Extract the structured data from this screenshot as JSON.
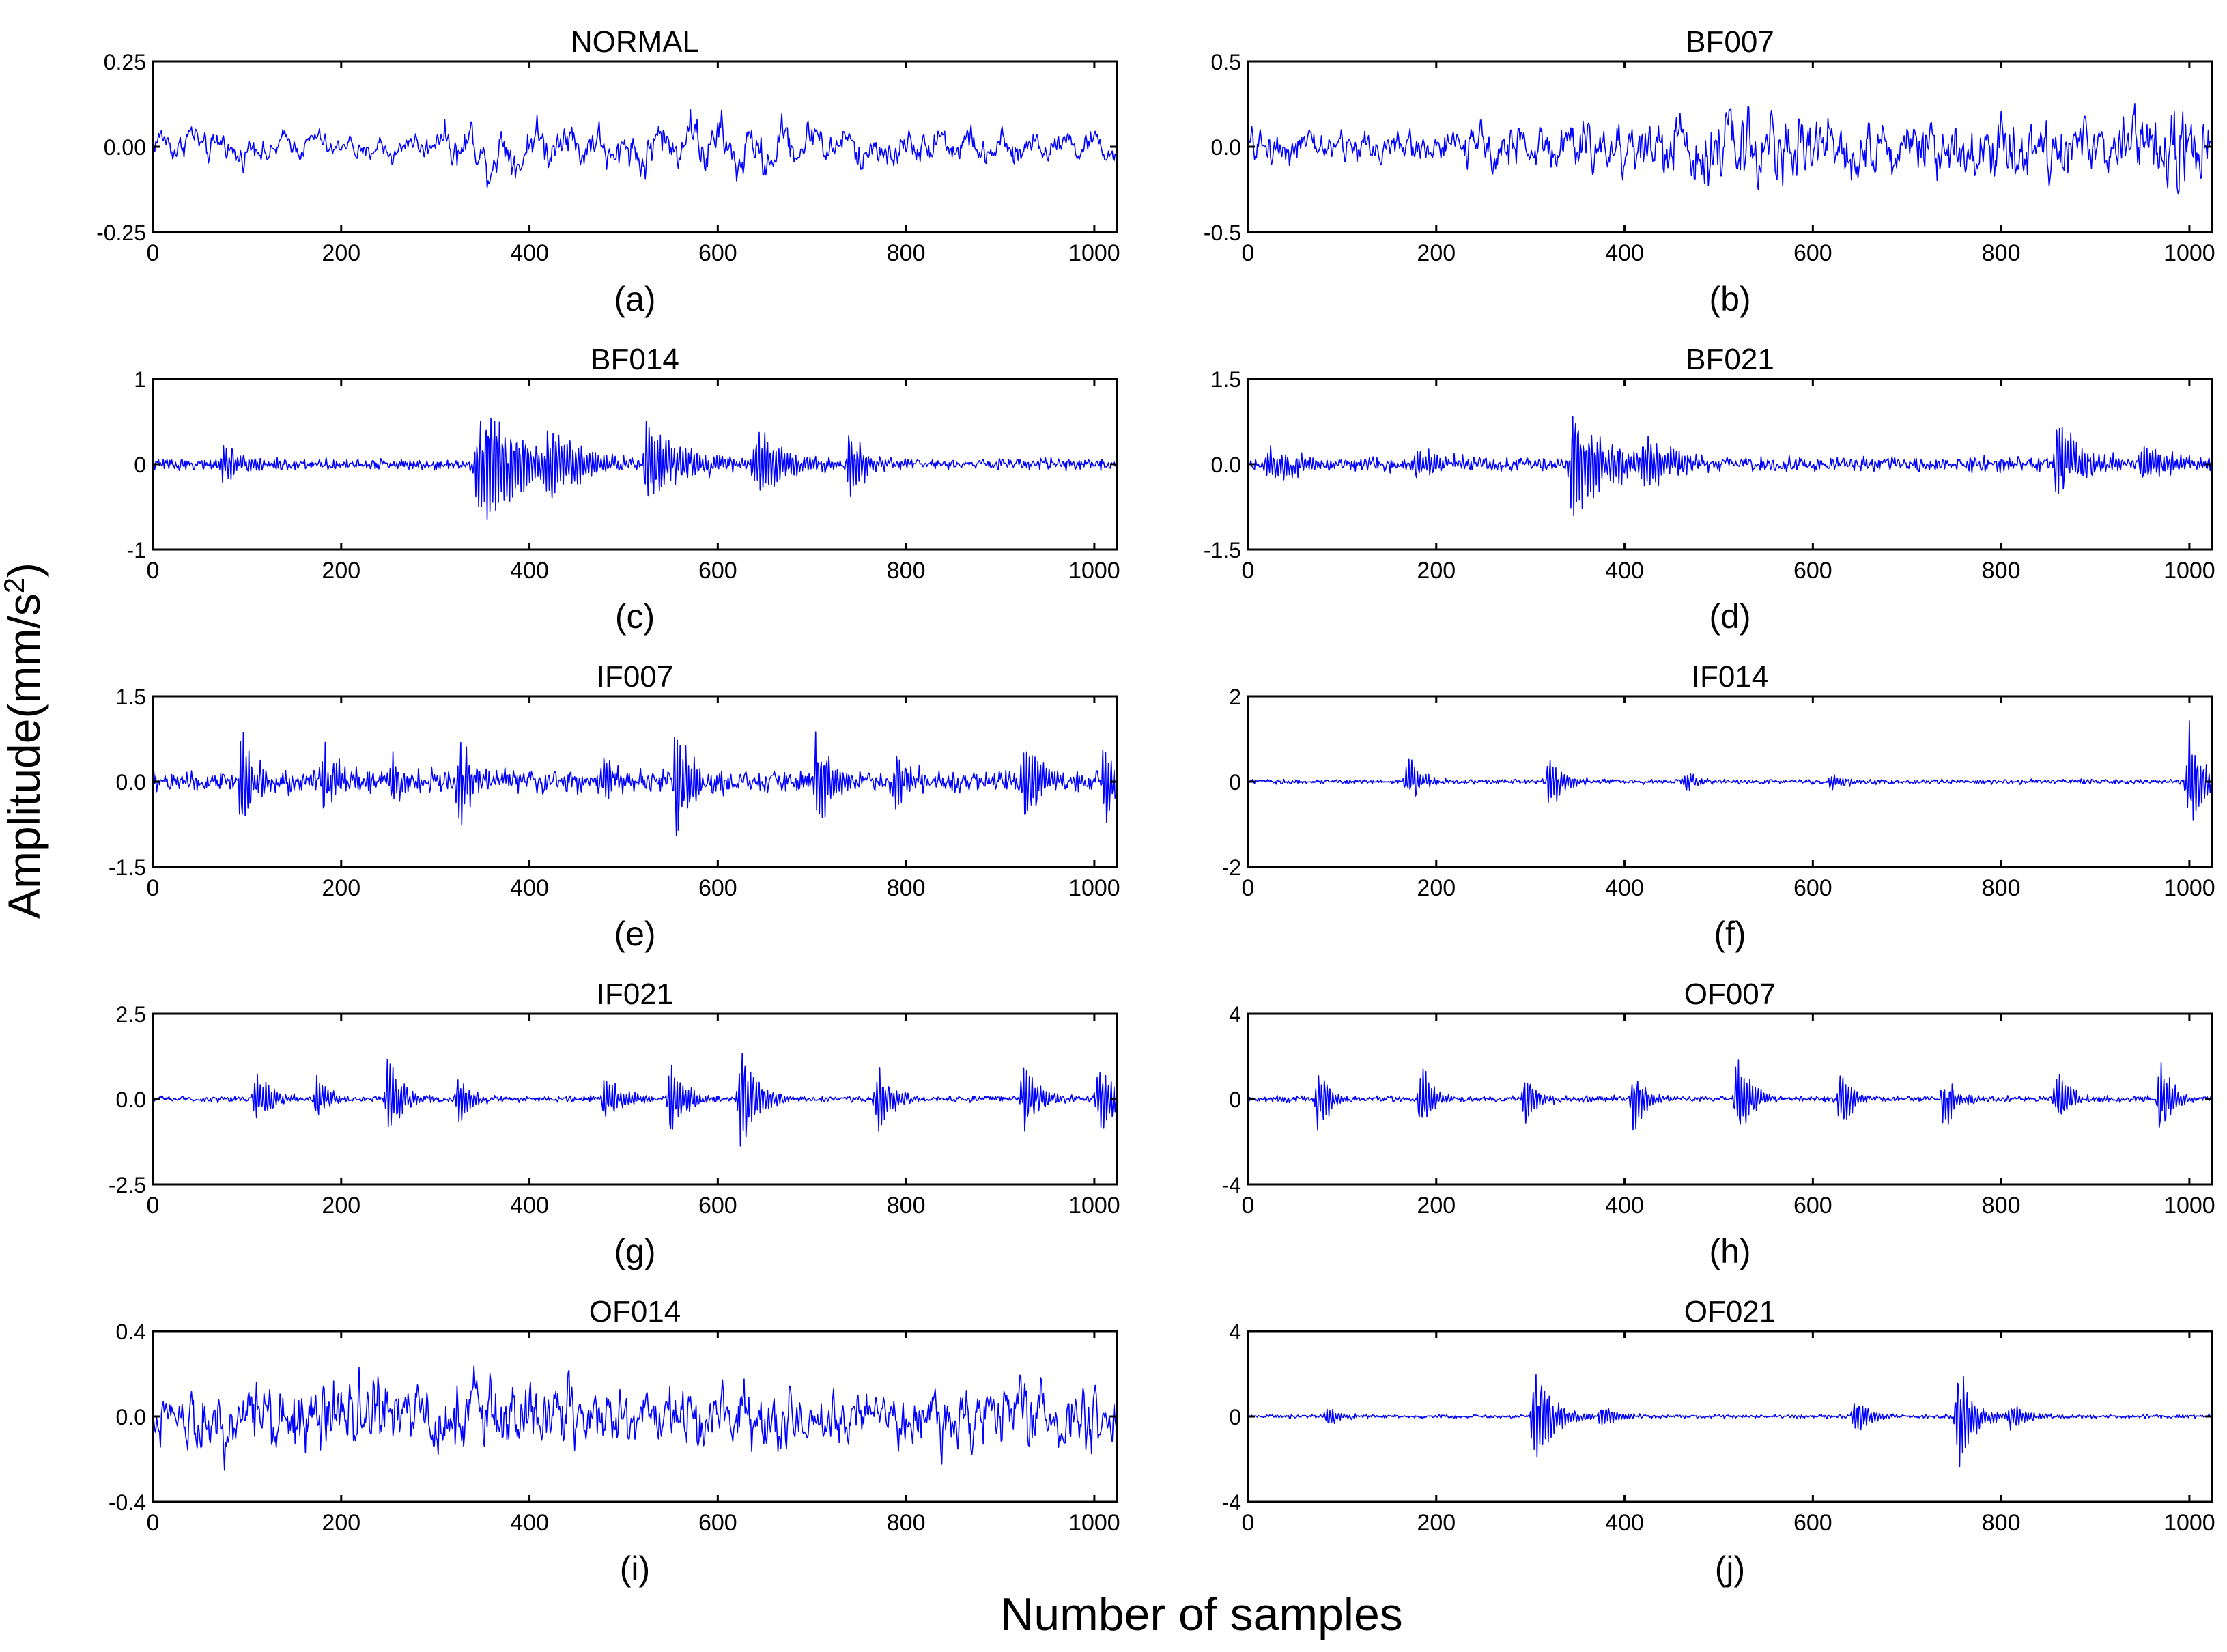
{
  "figure": {
    "ylabel": "Amplitude(mm/s",
    "ylabel_sup": "2",
    "ylabel_close": ")",
    "xlabel": "Number of samples",
    "line_color": "#0000ff"
  },
  "chart_data": [
    {
      "type": "line",
      "title": "NORMAL",
      "caption": "(a)",
      "xlabel": "Number of samples",
      "ylabel": "Amplitude(mm/s2)",
      "xlim": [
        0,
        1024
      ],
      "ylim": [
        -0.25,
        0.25
      ],
      "xticks": [
        0,
        200,
        400,
        600,
        800,
        1000
      ],
      "xtick_labels": [
        "0",
        "200",
        "400",
        "600",
        "800",
        "1000"
      ],
      "yticks": [
        -0.25,
        0,
        0.25
      ],
      "ytick_labels": [
        "-0.25",
        "0.00",
        "0.25"
      ],
      "n_samples": 1024,
      "noise_amp": 0.08,
      "envelope": [
        [
          0,
          0.09
        ],
        [
          60,
          0.1
        ],
        [
          140,
          0.07
        ],
        [
          280,
          0.08
        ],
        [
          350,
          0.15
        ],
        [
          460,
          0.12
        ],
        [
          600,
          0.16
        ],
        [
          700,
          0.12
        ],
        [
          860,
          0.1
        ],
        [
          1024,
          0.08
        ]
      ],
      "bursts": [],
      "series": [
        {
          "name": "NORMAL",
          "values": "1024-sample vibration record"
        }
      ]
    },
    {
      "type": "line",
      "title": "BF007",
      "caption": "(b)",
      "xlabel": "Number of samples",
      "ylabel": "Amplitude(mm/s2)",
      "xlim": [
        0,
        1024
      ],
      "ylim": [
        -0.5,
        0.5
      ],
      "xticks": [
        0,
        200,
        400,
        600,
        800,
        1000
      ],
      "xtick_labels": [
        "0",
        "200",
        "400",
        "600",
        "800",
        "1000"
      ],
      "yticks": [
        -0.5,
        0,
        0.5
      ],
      "ytick_labels": [
        "-0.5",
        "0.0",
        "0.5"
      ],
      "n_samples": 1024,
      "noise_amp": 0.14,
      "envelope": [
        [
          0,
          0.14
        ],
        [
          200,
          0.12
        ],
        [
          540,
          0.3
        ],
        [
          700,
          0.18
        ],
        [
          800,
          0.32
        ],
        [
          900,
          0.2
        ],
        [
          1000,
          0.35
        ],
        [
          1024,
          0.2
        ]
      ],
      "bursts": [],
      "series": [
        {
          "name": "BF007",
          "values": "1024-sample vibration record"
        }
      ]
    },
    {
      "type": "line",
      "title": "BF014",
      "caption": "(c)",
      "xlabel": "Number of samples",
      "ylabel": "Amplitude(mm/s2)",
      "xlim": [
        0,
        1024
      ],
      "ylim": [
        -1,
        1
      ],
      "xticks": [
        0,
        200,
        400,
        600,
        800,
        1000
      ],
      "xtick_labels": [
        "0",
        "200",
        "400",
        "600",
        "800",
        "1000"
      ],
      "yticks": [
        -1,
        0,
        1
      ],
      "ytick_labels": [
        "-1",
        "0",
        "1"
      ],
      "n_samples": 1024,
      "noise_amp": 0.09,
      "envelope": [],
      "bursts": [
        [
          75,
          0.3,
          25
        ],
        [
          345,
          0.85,
          50
        ],
        [
          420,
          0.4,
          30
        ],
        [
          525,
          0.6,
          40
        ],
        [
          640,
          0.45,
          35
        ],
        [
          740,
          0.45,
          20
        ]
      ],
      "series": [
        {
          "name": "BF014",
          "values": "1024-sample vibration record"
        }
      ]
    },
    {
      "type": "line",
      "title": "BF021",
      "caption": "(d)",
      "xlabel": "Number of samples",
      "ylabel": "Amplitude(mm/s2)",
      "xlim": [
        0,
        1024
      ],
      "ylim": [
        -1.5,
        1.5
      ],
      "xticks": [
        0,
        200,
        400,
        600,
        800,
        1000
      ],
      "xtick_labels": [
        "0",
        "200",
        "400",
        "600",
        "800",
        "1000"
      ],
      "yticks": [
        -1.5,
        0,
        1.5
      ],
      "ytick_labels": [
        "-1.5",
        "0.0",
        "1.5"
      ],
      "n_samples": 1024,
      "noise_amp": 0.18,
      "envelope": [],
      "bursts": [
        [
          20,
          0.35,
          30
        ],
        [
          180,
          0.3,
          40
        ],
        [
          345,
          1.1,
          40
        ],
        [
          420,
          0.4,
          40
        ],
        [
          860,
          0.9,
          25
        ],
        [
          950,
          0.35,
          40
        ]
      ],
      "series": [
        {
          "name": "BF021",
          "values": "1024-sample vibration record"
        }
      ]
    },
    {
      "type": "line",
      "title": "IF007",
      "caption": "(e)",
      "xlabel": "Number of samples",
      "ylabel": "Amplitude(mm/s2)",
      "xlim": [
        0,
        1024
      ],
      "ylim": [
        -1.5,
        1.5
      ],
      "xticks": [
        0,
        200,
        400,
        600,
        800,
        1000
      ],
      "xtick_labels": [
        "0",
        "200",
        "400",
        "600",
        "800",
        "1000"
      ],
      "yticks": [
        -1.5,
        0,
        1.5
      ],
      "ytick_labels": [
        "-1.5",
        "0.0",
        "1.5"
      ],
      "n_samples": 1024,
      "noise_amp": 0.28,
      "envelope": [],
      "bursts": [
        [
          95,
          0.95,
          14
        ],
        [
          180,
          0.75,
          14
        ],
        [
          255,
          0.6,
          12
        ],
        [
          325,
          1.05,
          14
        ],
        [
          480,
          0.7,
          12
        ],
        [
          555,
          1.3,
          16
        ],
        [
          705,
          1.1,
          14
        ],
        [
          790,
          0.65,
          12
        ],
        [
          925,
          1.1,
          14
        ],
        [
          1010,
          0.85,
          12
        ]
      ],
      "series": [
        {
          "name": "IF007",
          "values": "1024-sample vibration record"
        }
      ]
    },
    {
      "type": "line",
      "title": "IF014",
      "caption": "(f)",
      "xlabel": "Number of samples",
      "ylabel": "Amplitude(mm/s2)",
      "xlim": [
        0,
        1024
      ],
      "ylim": [
        -2,
        2
      ],
      "xticks": [
        0,
        200,
        400,
        600,
        800,
        1000
      ],
      "xtick_labels": [
        "0",
        "200",
        "400",
        "600",
        "800",
        "1000"
      ],
      "yticks": [
        -2,
        0,
        2
      ],
      "ytick_labels": [
        "-2",
        "0",
        "2"
      ],
      "n_samples": 1024,
      "noise_amp": 0.08,
      "envelope": [],
      "bursts": [
        [
          170,
          0.8,
          12
        ],
        [
          320,
          0.8,
          14
        ],
        [
          465,
          0.3,
          12
        ],
        [
          620,
          0.25,
          12
        ],
        [
          1000,
          1.5,
          14
        ]
      ],
      "series": [
        {
          "name": "IF014",
          "values": "1024-sample vibration record"
        }
      ]
    },
    {
      "type": "line",
      "title": "IF021",
      "caption": "(g)",
      "xlabel": "Number of samples",
      "ylabel": "Amplitude(mm/s2)",
      "xlim": [
        0,
        1024
      ],
      "ylim": [
        -2.5,
        2.5
      ],
      "xticks": [
        0,
        200,
        400,
        600,
        800,
        1000
      ],
      "xtick_labels": [
        "0",
        "200",
        "400",
        "600",
        "800",
        "1000"
      ],
      "yticks": [
        -2.5,
        0,
        2.5
      ],
      "ytick_labels": [
        "-2.5",
        "0.0",
        "2.5"
      ],
      "n_samples": 1024,
      "noise_amp": 0.12,
      "envelope": [],
      "bursts": [
        [
          110,
          1.0,
          16
        ],
        [
          175,
          0.9,
          12
        ],
        [
          250,
          1.5,
          16
        ],
        [
          325,
          0.9,
          12
        ],
        [
          480,
          0.8,
          20
        ],
        [
          550,
          1.3,
          16
        ],
        [
          625,
          1.9,
          16
        ],
        [
          770,
          1.3,
          14
        ],
        [
          925,
          1.3,
          16
        ],
        [
          1005,
          1.5,
          14
        ]
      ],
      "series": [
        {
          "name": "IF021",
          "values": "1024-sample vibration record"
        }
      ]
    },
    {
      "type": "line",
      "title": "OF007",
      "caption": "(h)",
      "xlabel": "Number of samples",
      "ylabel": "Amplitude(mm/s2)",
      "xlim": [
        0,
        1024
      ],
      "ylim": [
        -4,
        4
      ],
      "xticks": [
        0,
        200,
        400,
        600,
        800,
        1000
      ],
      "xtick_labels": [
        "0",
        "200",
        "400",
        "600",
        "800",
        "1000"
      ],
      "yticks": [
        -4,
        0,
        4
      ],
      "ytick_labels": [
        "-4",
        "0",
        "4"
      ],
      "n_samples": 1024,
      "noise_amp": 0.2,
      "envelope": [],
      "bursts": [
        [
          75,
          1.9,
          12
        ],
        [
          185,
          1.9,
          12
        ],
        [
          295,
          1.5,
          12
        ],
        [
          410,
          1.8,
          12
        ],
        [
          520,
          2.7,
          14
        ],
        [
          630,
          1.9,
          12
        ],
        [
          740,
          1.8,
          12
        ],
        [
          860,
          1.9,
          12
        ],
        [
          970,
          2.1,
          12
        ]
      ],
      "series": [
        {
          "name": "OF007",
          "values": "1024-sample vibration record"
        }
      ]
    },
    {
      "type": "line",
      "title": "OF014",
      "caption": "(i)",
      "xlabel": "Number of samples",
      "ylabel": "Amplitude(mm/s2)",
      "xlim": [
        0,
        1024
      ],
      "ylim": [
        -0.4,
        0.4
      ],
      "xticks": [
        0,
        200,
        400,
        600,
        800,
        1000
      ],
      "xtick_labels": [
        "0",
        "200",
        "400",
        "600",
        "800",
        "1000"
      ],
      "yticks": [
        -0.4,
        0,
        0.4
      ],
      "ytick_labels": [
        "-0.4",
        "0.0",
        "0.4"
      ],
      "n_samples": 1024,
      "noise_amp": 0.16,
      "envelope": [
        [
          0,
          0.16
        ],
        [
          160,
          0.26
        ],
        [
          300,
          0.22
        ],
        [
          360,
          0.26
        ],
        [
          500,
          0.16
        ],
        [
          620,
          0.22
        ],
        [
          760,
          0.15
        ],
        [
          920,
          0.25
        ],
        [
          1024,
          0.18
        ]
      ],
      "bursts": [],
      "series": [
        {
          "name": "OF014",
          "values": "1024-sample vibration record"
        }
      ]
    },
    {
      "type": "line",
      "title": "OF021",
      "caption": "(j)",
      "xlabel": "Number of samples",
      "ylabel": "Amplitude(mm/s2)",
      "xlim": [
        0,
        1024
      ],
      "ylim": [
        -4,
        4
      ],
      "xticks": [
        0,
        200,
        400,
        600,
        800,
        1000
      ],
      "xtick_labels": [
        "0",
        "200",
        "400",
        "600",
        "800",
        "1000"
      ],
      "yticks": [
        -4,
        0,
        4
      ],
      "ytick_labels": [
        "-4",
        "0",
        "4"
      ],
      "n_samples": 1024,
      "noise_amp": 0.12,
      "envelope": [],
      "bursts": [
        [
          85,
          0.6,
          14
        ],
        [
          305,
          3.0,
          18
        ],
        [
          375,
          0.6,
          20
        ],
        [
          645,
          1.3,
          14
        ],
        [
          755,
          3.0,
          16
        ],
        [
          810,
          0.7,
          20
        ]
      ],
      "series": [
        {
          "name": "OF021",
          "values": "1024-sample vibration record"
        }
      ]
    }
  ]
}
